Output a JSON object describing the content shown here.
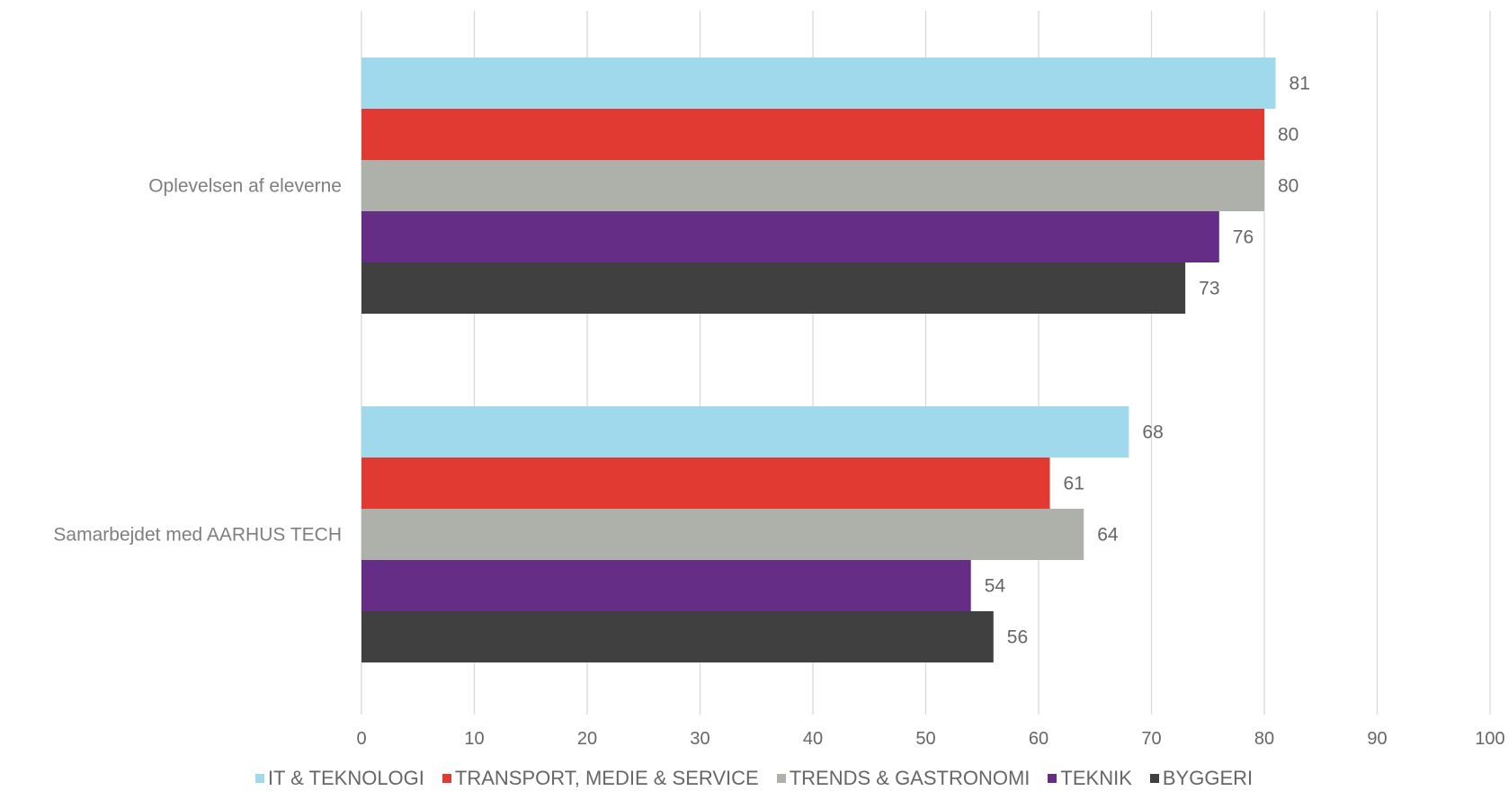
{
  "chart_data": {
    "type": "bar",
    "orientation": "horizontal",
    "categories": [
      "Oplevelsen af eleverne",
      "Samarbejdet med AARHUS TECH"
    ],
    "series": [
      {
        "name": "IT & TEKNOLOGI",
        "color": "#a0d9ec",
        "values": [
          81,
          68
        ]
      },
      {
        "name": "TRANSPORT, MEDIE & SERVICE",
        "color": "#e03a33",
        "values": [
          80,
          61
        ]
      },
      {
        "name": "TRENDS & GASTRONOMI",
        "color": "#adb1aa",
        "values": [
          80,
          64
        ]
      },
      {
        "name": "TEKNIK",
        "color": "#652d86",
        "values": [
          76,
          54
        ]
      },
      {
        "name": "BYGGERI",
        "color": "#404040",
        "values": [
          73,
          56
        ]
      }
    ],
    "value_axis": {
      "min": 0,
      "max": 100,
      "step": 10,
      "ticks": [
        "0",
        "10",
        "20",
        "30",
        "40",
        "50",
        "60",
        "70",
        "80",
        "90",
        "100"
      ]
    },
    "grid": true,
    "legend_position": "bottom"
  }
}
